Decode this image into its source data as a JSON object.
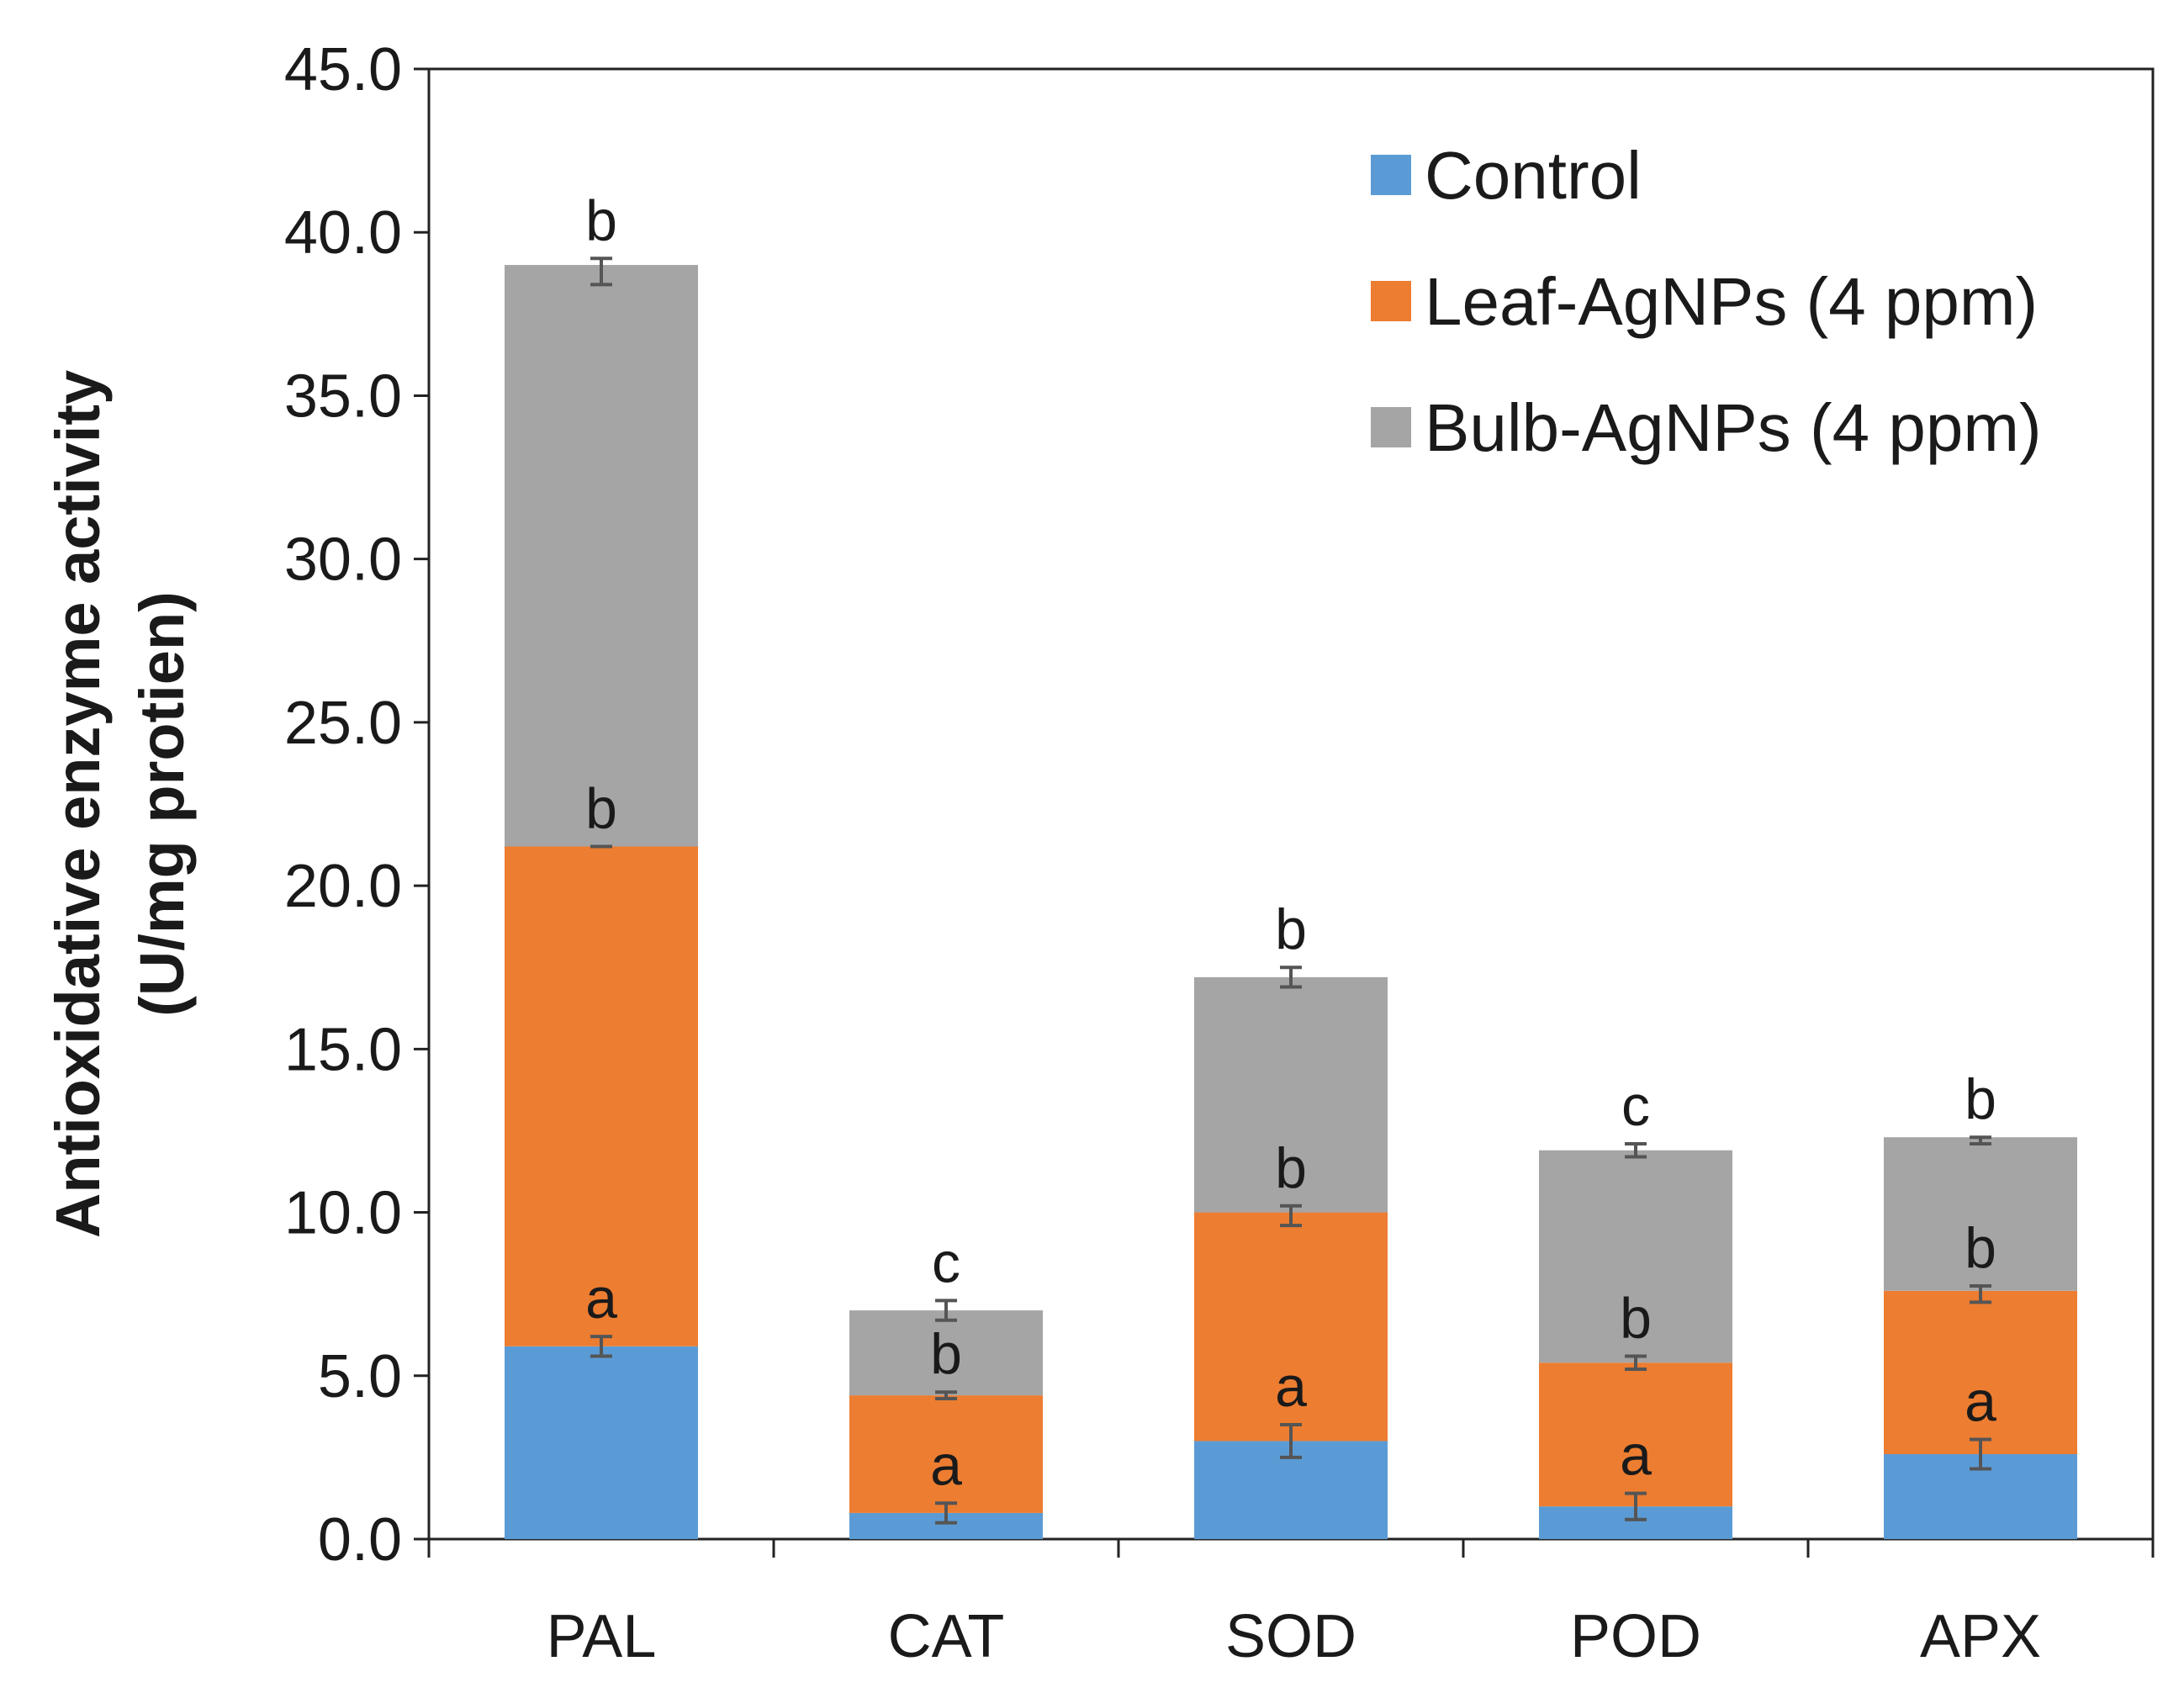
{
  "chart_data": {
    "type": "bar",
    "stacked": true,
    "title": "",
    "xlabel": "",
    "ylabel_lines": [
      "Antioxidative enzyme activity",
      "(U/mg protien)"
    ],
    "ylim": [
      0,
      45
    ],
    "yticks": [
      "0.0",
      "5.0",
      "10.0",
      "15.0",
      "20.0",
      "25.0",
      "30.0",
      "35.0",
      "40.0",
      "45.0"
    ],
    "categories": [
      "PAL",
      "CAT",
      "SOD",
      "POD",
      "APX"
    ],
    "legend_position": "top-right",
    "series": [
      {
        "name": "Control",
        "color": "#5b9bd5",
        "values": [
          5.9,
          0.8,
          3.0,
          1.0,
          2.6
        ],
        "error_top": [
          5.9,
          0.8,
          3.0,
          1.0,
          2.6
        ],
        "errors": [
          0.3,
          0.3,
          0.5,
          0.4,
          0.45
        ],
        "letters": [
          "a",
          "a",
          "a",
          "a",
          "a"
        ]
      },
      {
        "name": "Leaf-AgNPs (4 ppm)",
        "color": "#ed7d31",
        "values": [
          15.3,
          3.6,
          7.0,
          4.4,
          5.0
        ],
        "error_top": [
          21.2,
          4.4,
          9.9,
          5.4,
          7.5
        ],
        "errors": [
          0.0,
          0.1,
          0.3,
          0.2,
          0.25
        ],
        "letters": [
          "b",
          "b",
          "b",
          "b",
          "b"
        ]
      },
      {
        "name": "Bulb-AgNPs (4 ppm)",
        "color": "#a5a5a5",
        "values": [
          17.8,
          2.6,
          7.2,
          6.5,
          4.7
        ],
        "error_top": [
          38.8,
          7.0,
          17.2,
          11.9,
          12.2
        ],
        "errors": [
          0.4,
          0.3,
          0.3,
          0.2,
          0.1
        ],
        "letters": [
          "b",
          "c",
          "b",
          "c",
          "b"
        ]
      }
    ]
  }
}
